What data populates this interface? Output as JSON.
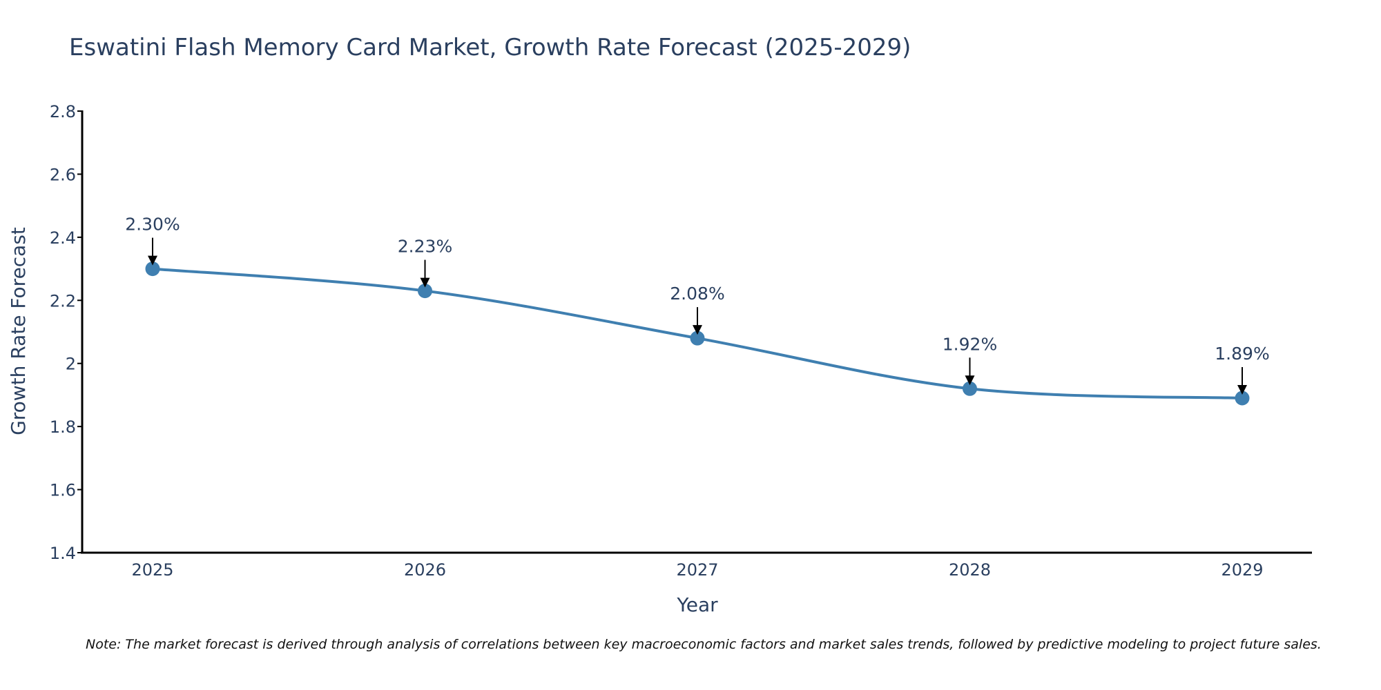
{
  "chart_data": {
    "type": "line",
    "title": "Eswatini Flash Memory Card Market, Growth Rate Forecast (2025-2029)",
    "xlabel": "Year",
    "ylabel": "Growth Rate Forecast",
    "categories": [
      "2025",
      "2026",
      "2027",
      "2028",
      "2029"
    ],
    "series": [
      {
        "name": "Growth Rate Forecast",
        "values": [
          2.3,
          2.23,
          2.08,
          1.92,
          1.89
        ],
        "labels": [
          "2.30%",
          "2.23%",
          "2.08%",
          "1.92%",
          "1.89%"
        ]
      }
    ],
    "ylim": [
      1.4,
      2.8
    ],
    "yticks": [
      1.4,
      1.6,
      1.8,
      2.0,
      2.2,
      2.4,
      2.6,
      2.8
    ],
    "ytick_labels": [
      "1.4",
      "1.6",
      "1.8",
      "2",
      "2.2",
      "2.4",
      "2.6",
      "2.8"
    ],
    "line_color": "#3f7fb0",
    "marker_color": "#3f7fb0",
    "grid": false,
    "note": "Note: The market forecast is derived through analysis of correlations between key macroeconomic factors and market sales trends, followed by predictive modeling to project future sales."
  }
}
